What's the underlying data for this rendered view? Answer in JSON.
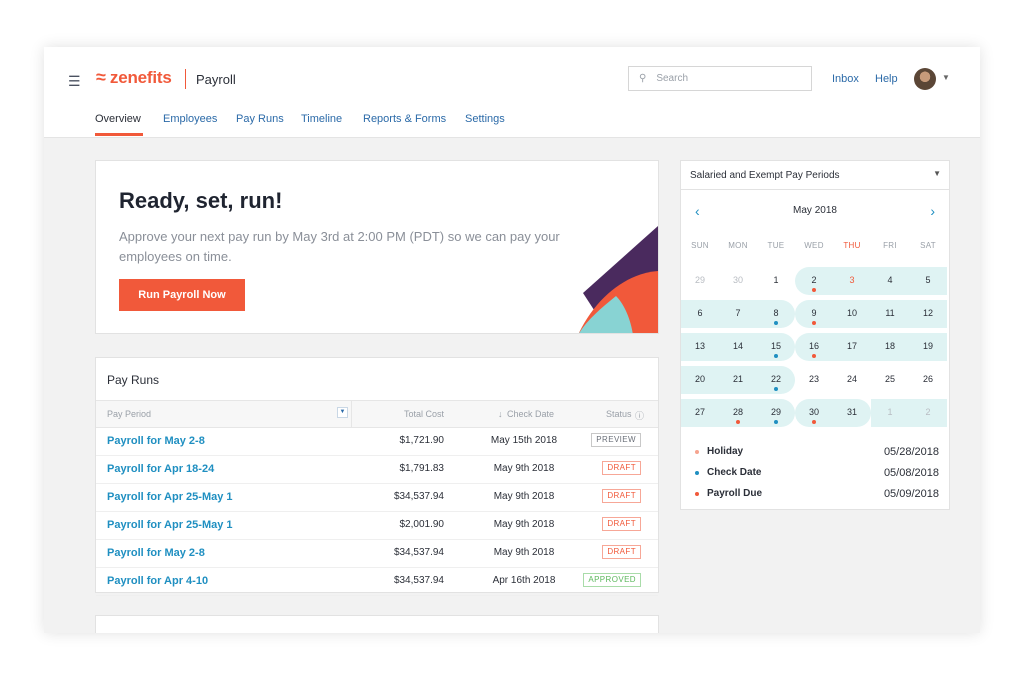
{
  "header": {
    "app_logo": "zenefits",
    "app_name": "Payroll",
    "search_placeholder": "Search",
    "inbox": "Inbox",
    "help": "Help"
  },
  "tabs": [
    "Overview",
    "Employees",
    "Pay Runs",
    "Timeline",
    "Reports & Forms",
    "Settings"
  ],
  "hero": {
    "title": "Ready, set, run!",
    "text": "Approve your next pay run by May 3rd at 2:00 PM (PDT) so we can pay your employees on time.",
    "button": "Run Payroll Now"
  },
  "pay_runs": {
    "title": "Pay Runs",
    "columns": [
      "Pay Period",
      "Total Cost",
      "Check Date",
      "Status"
    ],
    "rows": [
      {
        "period": "Payroll for May 2-8",
        "cost": "$1,721.90",
        "date": "May 15th 2018",
        "status": "PREVIEW"
      },
      {
        "period": "Payroll for Apr 18-24",
        "cost": "$1,791.83",
        "date": "May 9th 2018",
        "status": "DRAFT"
      },
      {
        "period": "Payroll for Apr 25-May 1",
        "cost": "$34,537.94",
        "date": "May 9th 2018",
        "status": "DRAFT"
      },
      {
        "period": "Payroll for Apr 25-May 1",
        "cost": "$2,001.90",
        "date": "May 9th 2018",
        "status": "DRAFT"
      },
      {
        "period": "Payroll for May 2-8",
        "cost": "$34,537.94",
        "date": "May 9th 2018",
        "status": "DRAFT"
      },
      {
        "period": "Payroll for Apr 4-10",
        "cost": "$34,537.94",
        "date": "Apr 16th 2018",
        "status": "APPROVED"
      }
    ]
  },
  "calendar": {
    "select": "Salaried and Exempt Pay Periods",
    "month": "May 2018",
    "weekdays": [
      "SUN",
      "MON",
      "TUE",
      "WED",
      "THU",
      "FRI",
      "SAT"
    ],
    "weeks": [
      [
        {
          "d": "29",
          "m": true
        },
        {
          "d": "30",
          "m": true
        },
        {
          "d": "1"
        },
        {
          "d": "2",
          "dot": "red"
        },
        {
          "d": "3",
          "today": true
        },
        {
          "d": "4"
        },
        {
          "d": "5"
        }
      ],
      [
        {
          "d": "6"
        },
        {
          "d": "7"
        },
        {
          "d": "8",
          "dot": "blue"
        },
        {
          "d": "9",
          "dot": "red"
        },
        {
          "d": "10"
        },
        {
          "d": "11"
        },
        {
          "d": "12"
        }
      ],
      [
        {
          "d": "13"
        },
        {
          "d": "14"
        },
        {
          "d": "15",
          "dot": "blue"
        },
        {
          "d": "16",
          "dot": "red"
        },
        {
          "d": "17"
        },
        {
          "d": "18"
        },
        {
          "d": "19"
        }
      ],
      [
        {
          "d": "20"
        },
        {
          "d": "21"
        },
        {
          "d": "22",
          "dot": "blue"
        },
        {
          "d": "23"
        },
        {
          "d": "24"
        },
        {
          "d": "25"
        },
        {
          "d": "26"
        }
      ],
      [
        {
          "d": "27"
        },
        {
          "d": "28",
          "dot": "red"
        },
        {
          "d": "29",
          "dot": "blue"
        },
        {
          "d": "30",
          "dot": "red"
        },
        {
          "d": "31"
        },
        {
          "d": "1",
          "m": true
        },
        {
          "d": "2",
          "m": true
        }
      ]
    ],
    "legend": [
      {
        "name": "Holiday",
        "date": "05/28/2018",
        "color": "#f6a48f"
      },
      {
        "name": "Check Date",
        "date": "05/08/2018",
        "color": "#1f8fc1"
      },
      {
        "name": "Payroll Due",
        "date": "05/09/2018",
        "color": "#f1593a"
      }
    ]
  },
  "colors": {
    "brand": "#f1593a",
    "link": "#1f8fc1",
    "period_band": "#dff3f3"
  }
}
